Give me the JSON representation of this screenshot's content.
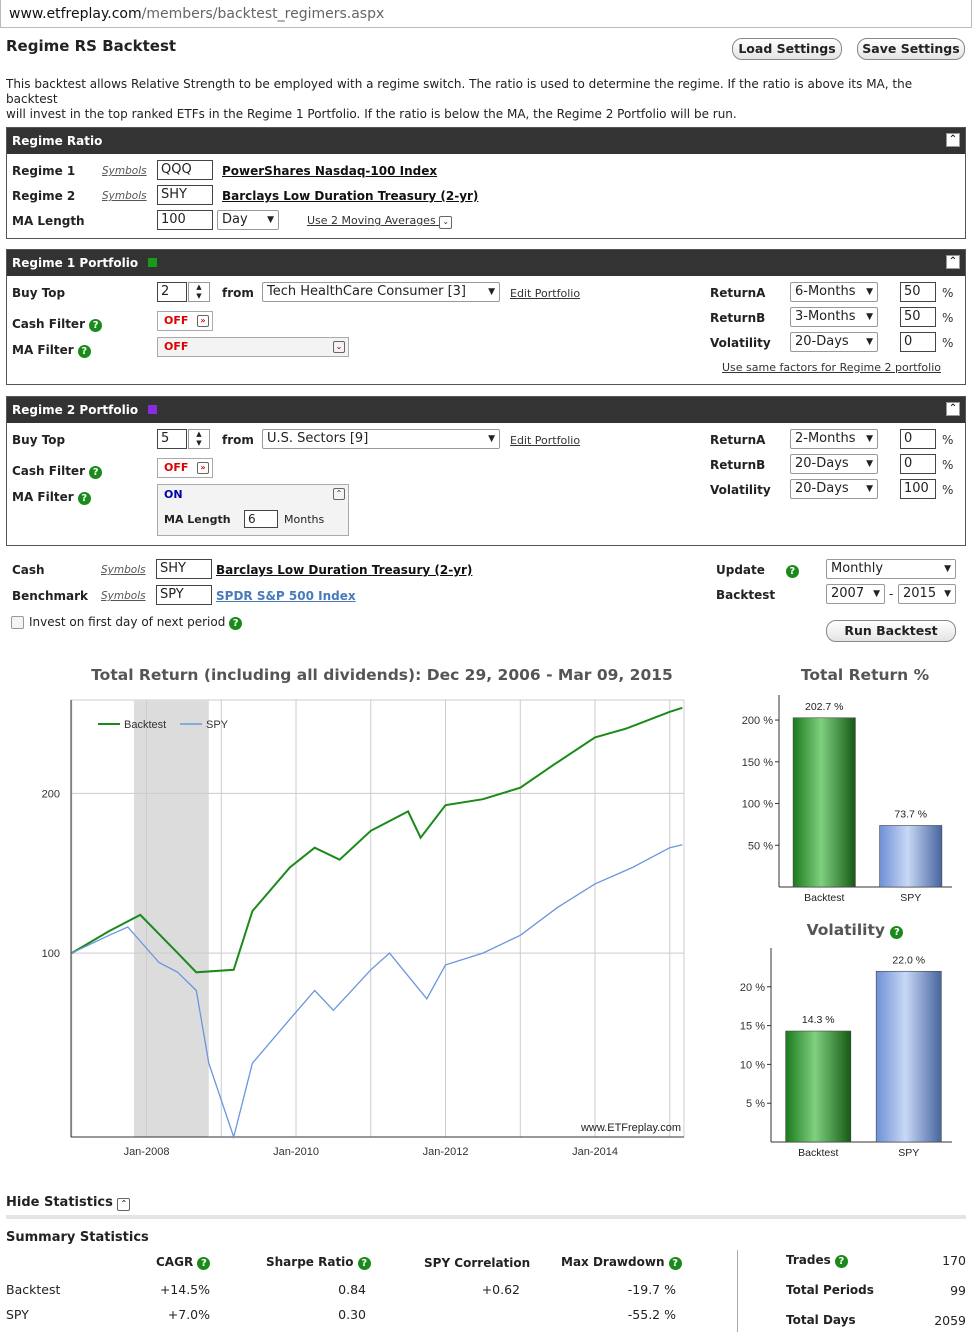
{
  "browser": {
    "url_host": "www.etfreplay.com",
    "url_path": "/members/backtest_regimers.aspx"
  },
  "page": {
    "title": "Regime RS Backtest",
    "load_settings": "Load Settings",
    "save_settings": "Save Settings",
    "description_line1": "This backtest allows Relative Strength to be employed with a regime switch. The ratio is used to determine the regime. If the ratio is above its MA, the backtest",
    "description_line2": "will invest in the top ranked ETFs in the Regime 1 Portfolio. If the ratio is below the MA, the Regime 2 Portfolio will be run."
  },
  "regime_ratio": {
    "header": "Regime Ratio",
    "regime1_label": "Regime 1",
    "regime1_symbols": "Symbols",
    "regime1_value": "QQQ",
    "regime1_name": "PowerShares Nasdaq-100 Index",
    "regime2_label": "Regime 2",
    "regime2_symbols": "Symbols",
    "regime2_value": "SHY",
    "regime2_name": "Barclays Low Duration Treasury (2-yr)",
    "ma_label": "MA Length",
    "ma_value": "100",
    "ma_unit": "Day",
    "use2ma": "Use 2 Moving Averages"
  },
  "regime1": {
    "header": "Regime 1 Portfolio",
    "color": "#1a9a1a",
    "buy_top_label": "Buy Top",
    "buy_top": "2",
    "from": "from",
    "portfolio": "Tech HealthCare Consumer [3]",
    "edit": "Edit Portfolio",
    "cash_filter_label": "Cash Filter",
    "cash_filter": "OFF",
    "ma_filter_label": "MA Filter",
    "ma_filter": "OFF",
    "returnA_label": "ReturnA",
    "returnA_period": "6-Months",
    "returnA_weight": "50",
    "returnB_label": "ReturnB",
    "returnB_period": "3-Months",
    "returnB_weight": "50",
    "vol_label": "Volatility",
    "vol_period": "20-Days",
    "vol_weight": "0",
    "pct": "%",
    "use_same": "Use same factors for Regime 2 portfolio"
  },
  "regime2": {
    "header": "Regime 2 Portfolio",
    "color": "#8a2be2",
    "buy_top_label": "Buy Top",
    "buy_top": "5",
    "from": "from",
    "portfolio": "U.S. Sectors [9]",
    "edit": "Edit Portfolio",
    "cash_filter_label": "Cash Filter",
    "cash_filter": "OFF",
    "ma_filter_label": "MA Filter",
    "ma_filter": "ON",
    "ma_length_label": "MA Length",
    "ma_length": "6",
    "ma_unit": "Months",
    "returnA_label": "ReturnA",
    "returnA_period": "2-Months",
    "returnA_weight": "0",
    "returnB_label": "ReturnB",
    "returnB_period": "20-Days",
    "returnB_weight": "0",
    "vol_label": "Volatility",
    "vol_period": "20-Days",
    "vol_weight": "100",
    "pct": "%"
  },
  "settings": {
    "cash_label": "Cash",
    "cash_symbols": "Symbols",
    "cash_value": "SHY",
    "cash_name": "Barclays Low Duration Treasury (2-yr)",
    "bench_label": "Benchmark",
    "bench_symbols": "Symbols",
    "bench_value": "SPY",
    "bench_name": "SPDR S&P 500 Index",
    "invest_first": "Invest on first day of next period",
    "update_label": "Update",
    "update_value": "Monthly",
    "backtest_label": "Backtest",
    "start_year": "2007",
    "dash": "-",
    "end_year": "2015",
    "run": "Run Backtest"
  },
  "chart_data": [
    {
      "type": "line",
      "title": "Total Return (including all dividends): Dec 29, 2006 - Mar 09, 2015",
      "x_ticks": [
        "Jan-2008",
        "Jan-2010",
        "Jan-2012",
        "Jan-2014"
      ],
      "y_ticks": [
        "100",
        "200"
      ],
      "yscale": "log",
      "watermark": "www.ETFreplay.com",
      "shaded_region": [
        "Nov-2007",
        "Nov-2008"
      ],
      "series": [
        {
          "name": "Backtest",
          "color": "#1a8a1a",
          "x": [
            "2007-01",
            "2007-07",
            "2007-12",
            "2008-06",
            "2008-09",
            "2009-03",
            "2009-06",
            "2009-12",
            "2010-04",
            "2010-08",
            "2011-01",
            "2011-07",
            "2011-09",
            "2012-01",
            "2012-07",
            "2013-01",
            "2013-06",
            "2014-01",
            "2014-06",
            "2015-01",
            "2015-03"
          ],
          "values": [
            100,
            110,
            118,
            100,
            92,
            93,
            120,
            145,
            158,
            150,
            170,
            185,
            165,
            190,
            195,
            205,
            225,
            255,
            265,
            285,
            290
          ]
        },
        {
          "name": "SPY",
          "color": "#6a96dc",
          "x": [
            "2007-01",
            "2007-07",
            "2007-10",
            "2008-03",
            "2008-06",
            "2008-09",
            "2008-11",
            "2009-03",
            "2009-06",
            "2009-12",
            "2010-04",
            "2010-07",
            "2011-01",
            "2011-04",
            "2011-10",
            "2012-01",
            "2012-07",
            "2013-01",
            "2013-07",
            "2014-01",
            "2014-07",
            "2015-01",
            "2015-03"
          ],
          "values": [
            100,
            108,
            112,
            96,
            92,
            85,
            62,
            45,
            62,
            75,
            85,
            78,
            93,
            100,
            82,
            95,
            100,
            108,
            122,
            135,
            145,
            158,
            160
          ]
        }
      ]
    },
    {
      "type": "bar",
      "title": "Total Return %",
      "categories": [
        "Backtest",
        "SPY"
      ],
      "values": [
        202.7,
        73.7
      ],
      "value_labels": [
        "202.7 %",
        "73.7 %"
      ],
      "y_ticks": [
        "50 %",
        "100 %",
        "150 %",
        "200 %"
      ],
      "ylim": [
        0,
        230
      ]
    },
    {
      "type": "bar",
      "title": "Volatility",
      "categories": [
        "Backtest",
        "SPY"
      ],
      "values": [
        14.3,
        22.0
      ],
      "value_labels": [
        "14.3 %",
        "22.0 %"
      ],
      "y_ticks": [
        "5 %",
        "10 %",
        "15 %",
        "20 %"
      ],
      "ylim": [
        0,
        25
      ]
    }
  ],
  "legend": {
    "backtest": "Backtest",
    "spy": "SPY"
  },
  "stats": {
    "hide": "Hide Statistics",
    "summary": "Summary Statistics",
    "cols": [
      "CAGR",
      "Sharpe Ratio",
      "SPY Correlation",
      "Max Drawdown"
    ],
    "rows": [
      {
        "name": "Backtest",
        "cagr": "+14.5%",
        "sharpe": "0.84",
        "corr": "+0.62",
        "dd": "-19.7 %"
      },
      {
        "name": "SPY",
        "cagr": "+7.0%",
        "sharpe": "0.30",
        "corr": "",
        "dd": "-55.2 %"
      }
    ],
    "trades_label": "Trades",
    "trades": "170",
    "periods_label": "Total Periods",
    "periods": "99",
    "days_label": "Total Days",
    "days": "2059"
  }
}
